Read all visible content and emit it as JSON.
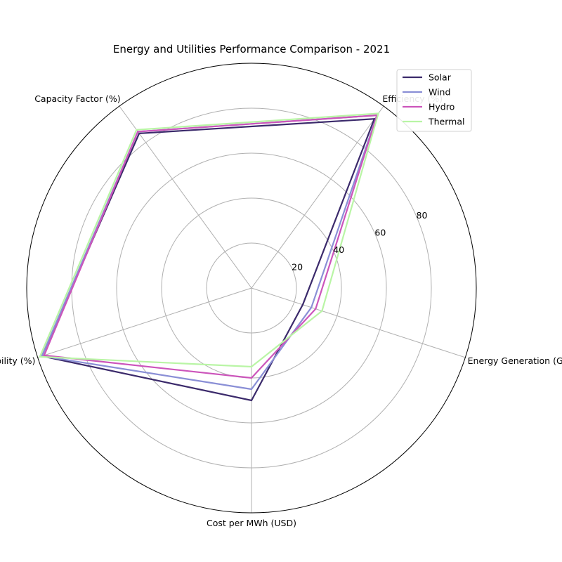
{
  "chart_data": {
    "type": "radar",
    "title": "Energy and Utilities Performance Comparison - 2021",
    "axes": [
      "Energy Generation (GWh)",
      "Efficiency (%)",
      "Capacity Factor (%)",
      "Availability (%)",
      "Cost per MWh (USD)"
    ],
    "rlim": [
      0,
      100
    ],
    "rticks": [
      20,
      40,
      60,
      80
    ],
    "rtick_labels": [
      "20",
      "40",
      "60",
      "80"
    ],
    "grid": true,
    "legend_position": "top-right",
    "series": [
      {
        "name": "Solar",
        "color": "#3b2a6b",
        "values": [
          24,
          93,
          85,
          98,
          50
        ]
      },
      {
        "name": "Wind",
        "color": "#8a8fd6",
        "values": [
          28,
          95,
          86,
          98,
          45
        ]
      },
      {
        "name": "Hydro",
        "color": "#cc55bb",
        "values": [
          30,
          95,
          86,
          97,
          40
        ]
      },
      {
        "name": "Thermal",
        "color": "#b9f5a5",
        "values": [
          33,
          96,
          87,
          99,
          35
        ]
      }
    ]
  }
}
